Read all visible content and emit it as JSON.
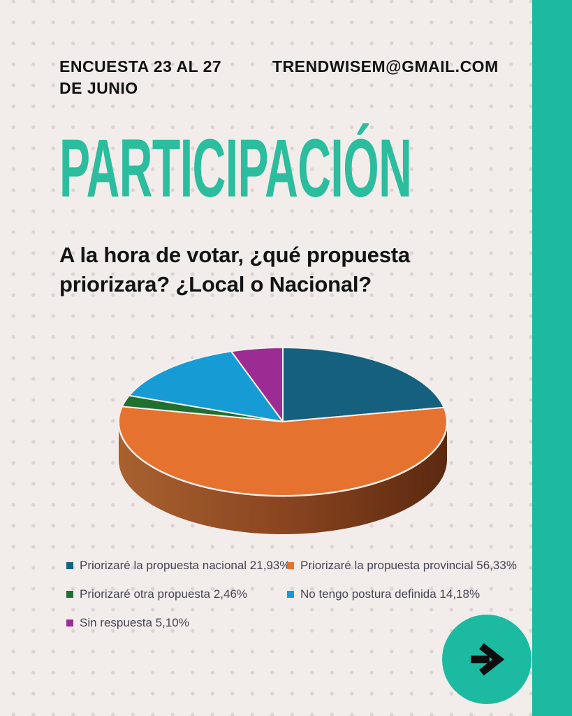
{
  "header": {
    "survey_period_lines": [
      "ENCUESTA 23 AL 27",
      "DE JUNIO"
    ],
    "contact_email": "TRENDWISEM@GMAIL.COM"
  },
  "title": "PARTICIPACIÓN",
  "question": "A la hora de votar, ¿qué propuesta priorizara? ¿Local o Nacional?",
  "chart_data": {
    "type": "pie",
    "style": "3d",
    "start_angle_deg": 90,
    "direction": "clockwise",
    "legend_position": "bottom",
    "categories": [
      "Priorizaré la propuesta nacional",
      "Priorizaré la propuesta provincial",
      "Priorizaré otra propuesta",
      "No tengo postura definida",
      "Sin respuesta"
    ],
    "values": [
      21.93,
      56.33,
      2.46,
      14.18,
      5.1
    ],
    "value_labels": [
      "21,93%",
      "56,33%",
      "2,46%",
      "14,18%",
      "5,10%"
    ],
    "colors": [
      "#15607E",
      "#E5722E",
      "#1F7030",
      "#169BD5",
      "#9C2B94"
    ],
    "depth_gradient": [
      "#A8612F",
      "#8A4520",
      "#5C2910"
    ],
    "slice_border_color": "#F6F0EE"
  },
  "next_button": {
    "icon": "arrow-right",
    "arrow_color": "#0E0E0E"
  },
  "theme": {
    "background": "#F2ECEB",
    "dot_color": "#DDD3D3",
    "accent_teal": "#1DBAA2",
    "title_teal": "#2BBD9D",
    "text_dark": "#131313",
    "legend_text": "#474453"
  }
}
